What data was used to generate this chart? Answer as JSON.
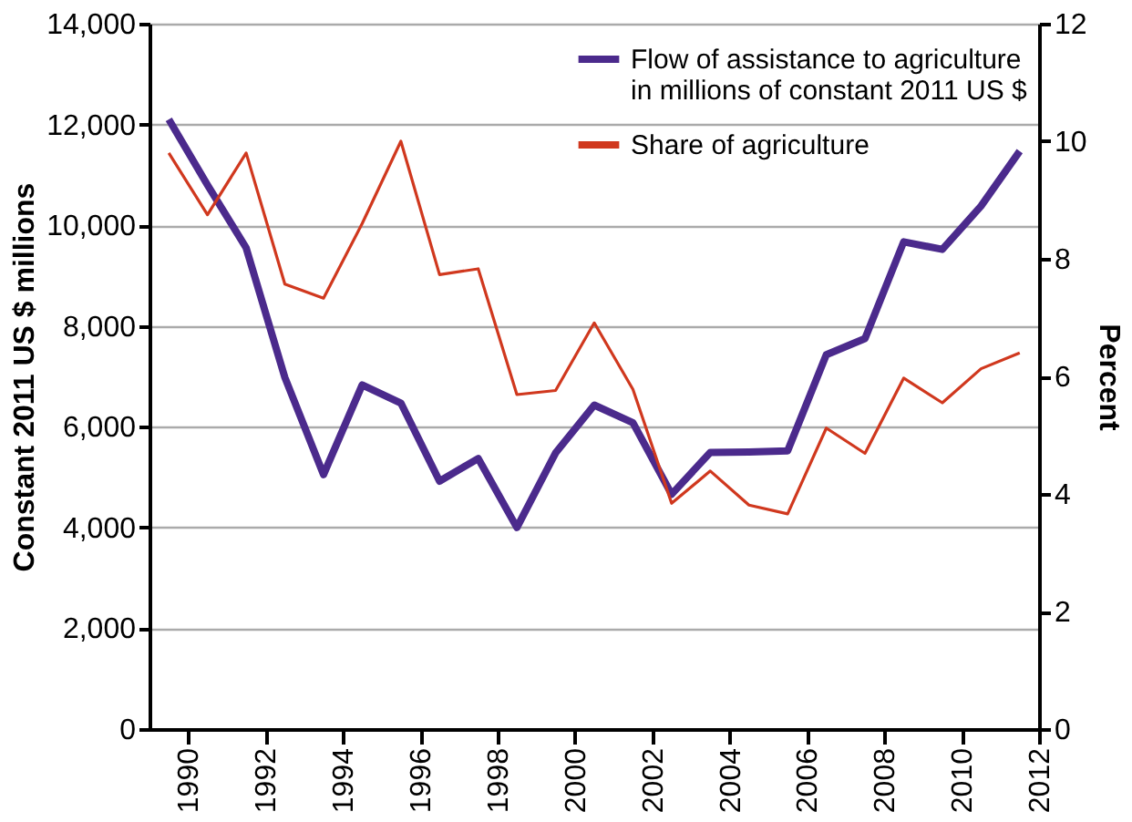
{
  "chart_data": {
    "type": "line",
    "xlabel": null,
    "ylabel": "Constant 2011 US $ millions",
    "y2label": "Percent",
    "x": [
      1989.5,
      1990.5,
      1991.5,
      1992.5,
      1993.5,
      1994.5,
      1995.5,
      1996.5,
      1997.5,
      1998.5,
      1999.5,
      2000.5,
      2001.5,
      2002.5,
      2003.5,
      2004.5,
      2005.5,
      2006.5,
      2007.5,
      2008.5,
      2009.5,
      2010.5,
      2011.5
    ],
    "series": [
      {
        "name": "Flow of assistance to agriculture\nin millions of constant 2011 US $",
        "color": "#4b2a8c",
        "values": [
          12100,
          10800,
          9550,
          6980,
          5050,
          6830,
          6470,
          4920,
          5370,
          4000,
          5480,
          6430,
          6080,
          4660,
          5490,
          5500,
          5520,
          7430,
          7750,
          9670,
          9520,
          10380,
          11470
        ]
      },
      {
        "name": "Share of agriculture",
        "color": "#d0381e",
        "axis": "y2",
        "values": [
          9.8,
          8.75,
          9.8,
          7.57,
          7.33,
          8.6,
          10.0,
          7.73,
          7.83,
          5.69,
          5.76,
          6.91,
          5.78,
          3.84,
          4.39,
          3.81,
          3.66,
          5.12,
          4.69,
          5.97,
          5.55,
          6.13,
          6.4
        ]
      }
    ],
    "xlim": [
      1989,
      2012
    ],
    "xticks": [
      1990,
      1992,
      1994,
      1996,
      1998,
      2000,
      2002,
      2004,
      2006,
      2008,
      2010,
      2012
    ],
    "ylim": [
      0,
      14000
    ],
    "yticks": [
      0,
      {
        "value": 2000,
        "label": "2,000"
      },
      {
        "value": 4000,
        "label": "4,000"
      },
      {
        "value": 6000,
        "label": "6,000"
      },
      {
        "value": 8000,
        "label": "8,000"
      },
      {
        "value": 10000,
        "label": "10,000"
      },
      {
        "value": 12000,
        "label": "12,000"
      },
      {
        "value": 14000,
        "label": "14,000"
      }
    ],
    "y2lim": [
      0,
      12
    ],
    "y2ticks": [
      0,
      2,
      4,
      6,
      8,
      10,
      12
    ],
    "grid": "y",
    "legend": "top right",
    "marker": "none",
    "line_style": "solid"
  }
}
